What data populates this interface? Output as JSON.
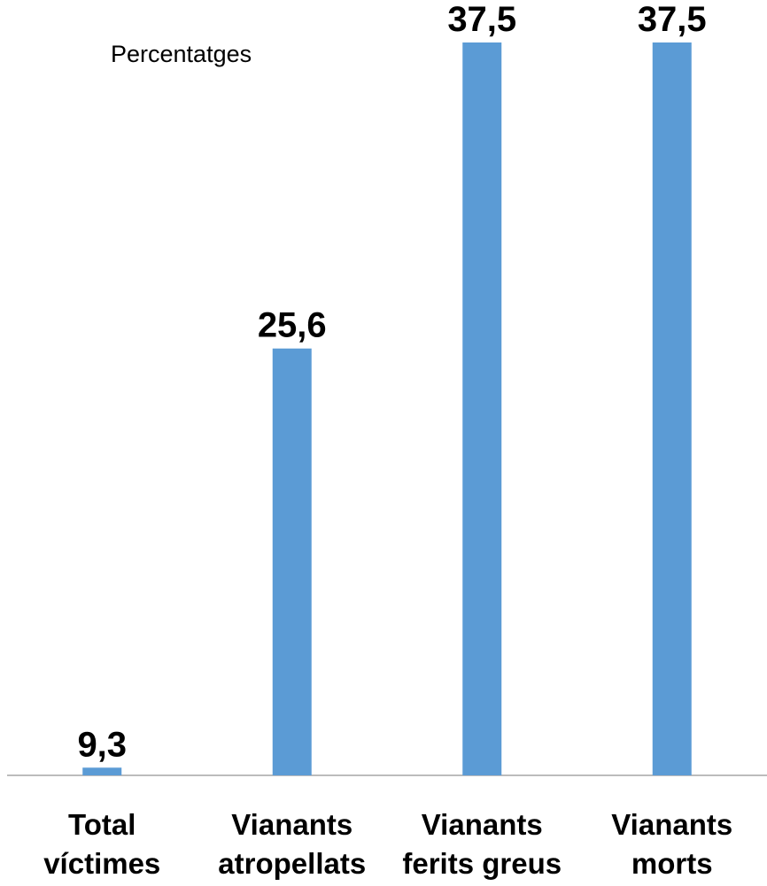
{
  "chart_data": {
    "type": "bar",
    "label": "Percentatges",
    "categories": [
      [
        "Total",
        "víctimes"
      ],
      [
        "Vianants",
        "atropellats"
      ],
      [
        "Vianants",
        "ferits greus"
      ],
      [
        "Vianants",
        "morts"
      ]
    ],
    "values": [
      9.3,
      25.6,
      37.5,
      37.5
    ],
    "data_labels": [
      "9,3",
      "25,6",
      "37,5",
      "37,5"
    ],
    "ylim": [
      9,
      37.5
    ],
    "bar_color": "#5b9bd5",
    "axis_color": "#a6a6a6",
    "grid": false,
    "legend_position": "top-left"
  }
}
